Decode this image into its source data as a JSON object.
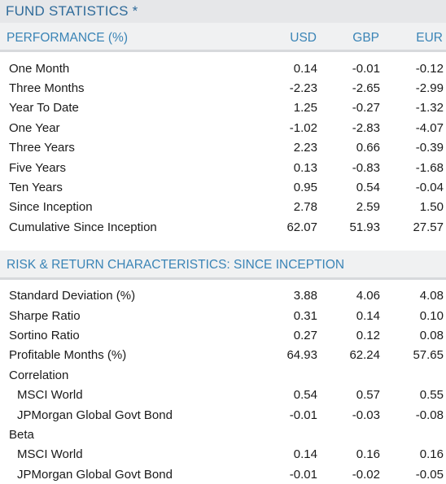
{
  "title": "FUND STATISTICS *",
  "performance": {
    "header": "PERFORMANCE (%)",
    "currencies": [
      "USD",
      "GBP",
      "EUR"
    ],
    "rows": [
      {
        "label": "One Month",
        "usd": "0.14",
        "gbp": "-0.01",
        "eur": "-0.12"
      },
      {
        "label": "Three Months",
        "usd": "-2.23",
        "gbp": "-2.65",
        "eur": "-2.99"
      },
      {
        "label": "Year To Date",
        "usd": "1.25",
        "gbp": "-0.27",
        "eur": "-1.32"
      },
      {
        "label": "One Year",
        "usd": "-1.02",
        "gbp": "-2.83",
        "eur": "-4.07"
      },
      {
        "label": "Three Years",
        "usd": "2.23",
        "gbp": "0.66",
        "eur": "-0.39"
      },
      {
        "label": "Five Years",
        "usd": "0.13",
        "gbp": "-0.83",
        "eur": "-1.68"
      },
      {
        "label": "Ten Years",
        "usd": "0.95",
        "gbp": "0.54",
        "eur": "-0.04"
      },
      {
        "label": "Since Inception",
        "usd": "2.78",
        "gbp": "2.59",
        "eur": "1.50"
      },
      {
        "label": "Cumulative Since Inception",
        "usd": "62.07",
        "gbp": "51.93",
        "eur": "27.57"
      }
    ]
  },
  "risk": {
    "header": "RISK & RETURN CHARACTERISTICS: SINCE INCEPTION",
    "rows": [
      {
        "label": "Standard Deviation (%)",
        "usd": "3.88",
        "gbp": "4.06",
        "eur": "4.08"
      },
      {
        "label": "Sharpe Ratio",
        "usd": "0.31",
        "gbp": "0.14",
        "eur": "0.10"
      },
      {
        "label": "Sortino Ratio",
        "usd": "0.27",
        "gbp": "0.12",
        "eur": "0.08"
      },
      {
        "label": "Profitable Months (%)",
        "usd": "64.93",
        "gbp": "62.24",
        "eur": "57.65"
      },
      {
        "label": "Correlation",
        "usd": "",
        "gbp": "",
        "eur": "",
        "group": true
      },
      {
        "label": "MSCI World",
        "usd": "0.54",
        "gbp": "0.57",
        "eur": "0.55",
        "indent": true
      },
      {
        "label": "JPMorgan Global Govt Bond",
        "usd": "-0.01",
        "gbp": "-0.03",
        "eur": "-0.08",
        "indent": true
      },
      {
        "label": "Beta",
        "usd": "",
        "gbp": "",
        "eur": "",
        "group": true
      },
      {
        "label": "MSCI World",
        "usd": "0.14",
        "gbp": "0.16",
        "eur": "0.16",
        "indent": true
      },
      {
        "label": "JPMorgan Global Govt Bond",
        "usd": "-0.01",
        "gbp": "-0.02",
        "eur": "-0.05",
        "indent": true
      }
    ]
  }
}
